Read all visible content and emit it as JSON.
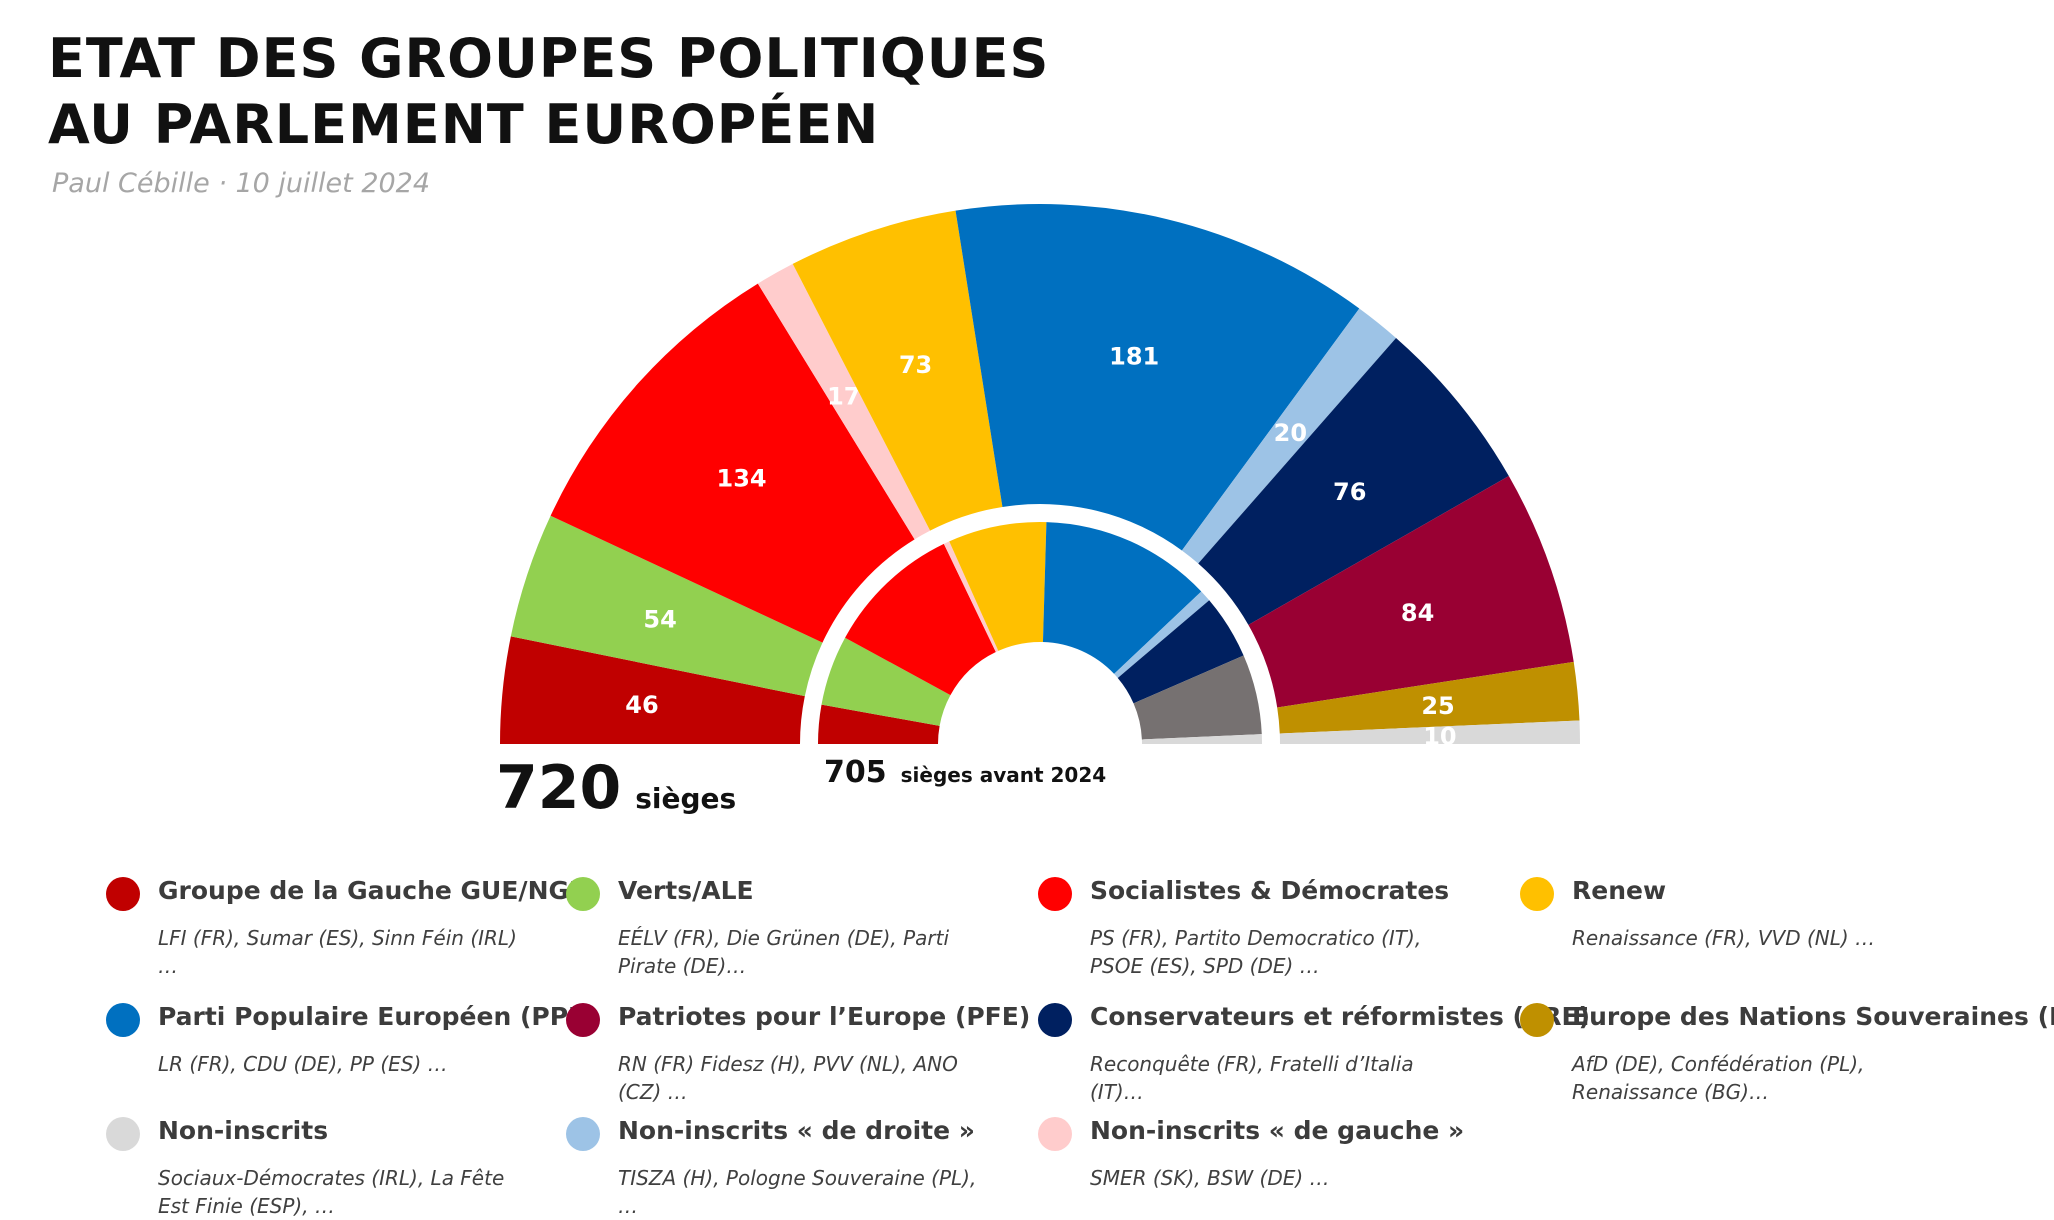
{
  "header": {
    "title_line1": "ETAT DES GROUPES POLITIQUES",
    "title_line2": "AU PARLEMENT EUROPÉEN",
    "subtitle": "Paul Cébille · 10 juillet 2024"
  },
  "chart_data": {
    "type": "pie",
    "variant": "hemicycle",
    "outer_ring": {
      "total_value": "720",
      "total_label": "sièges",
      "slices": [
        {
          "group": "Groupe de la Gauche GUE/NGL",
          "value": 46,
          "color": "#c00000"
        },
        {
          "group": "Verts/ALE",
          "value": 54,
          "color": "#92d050"
        },
        {
          "group": "Socialistes & Démocrates",
          "value": 134,
          "color": "#ff0000"
        },
        {
          "group": "Non-inscrits « de gauche »",
          "value": 17,
          "color": "#ffcccc"
        },
        {
          "group": "Renew",
          "value": 73,
          "color": "#ffc000"
        },
        {
          "group": "Parti Populaire Européen (PPE)",
          "value": 181,
          "color": "#0070c0"
        },
        {
          "group": "Non-inscrits « de droite »",
          "value": 20,
          "color": "#9dc3e6"
        },
        {
          "group": "Conservateurs et réformistes (CRE)",
          "value": 76,
          "color": "#002060"
        },
        {
          "group": "Patriotes pour l'Europe (PFE)",
          "value": 84,
          "color": "#990033"
        },
        {
          "group": "Europe des Nations Souveraines (ENS)",
          "value": 25,
          "color": "#bf9000"
        },
        {
          "group": "Non-inscrits",
          "value": 10,
          "color": "#d9d9d9"
        }
      ]
    },
    "inner_ring": {
      "total_value": "705",
      "total_label": "sièges avant 2024",
      "slices": [
        {
          "value": 40,
          "color": "#c00000"
        },
        {
          "value": 72,
          "color": "#92d050"
        },
        {
          "value": 140,
          "color": "#ff0000"
        },
        {
          "value": 6,
          "color": "#ffcccc"
        },
        {
          "value": 101,
          "color": "#ffc000"
        },
        {
          "value": 176,
          "color": "#0070c0"
        },
        {
          "value": 12,
          "color": "#9dc3e6"
        },
        {
          "value": 66,
          "color": "#002060"
        },
        {
          "value": 82,
          "color": "#767171"
        },
        {
          "value": 10,
          "color": "#d9d9d9"
        }
      ]
    }
  },
  "legend": [
    {
      "name": "Groupe de la Gauche GUE/NGL",
      "desc": "LFI (FR), Sumar (ES), Sinn Féin (IRL) …",
      "color": "#c00000"
    },
    {
      "name": "Verts/ALE",
      "desc": "EÉLV (FR), Die Grünen (DE), Parti Pirate (DE)…",
      "color": "#92d050"
    },
    {
      "name": "Socialistes & Démocrates",
      "desc": "PS (FR), Partito Democratico (IT), PSOE (ES), SPD (DE) …",
      "color": "#ff0000"
    },
    {
      "name": "Renew",
      "desc": "Renaissance (FR), VVD (NL) …",
      "color": "#ffc000"
    },
    {
      "name": "Parti Populaire Européen (PPE)",
      "desc": "LR (FR), CDU (DE), PP (ES) …",
      "color": "#0070c0"
    },
    {
      "name": "Patriotes pour l’Europe (PFE)",
      "desc": "RN (FR) Fidesz (H), PVV (NL), ANO (CZ) …",
      "color": "#990033"
    },
    {
      "name": "Conservateurs et réformistes (CRE)",
      "desc": "Reconquête (FR), Fratelli d’Italia (IT)…",
      "color": "#002060"
    },
    {
      "name": "Europe des Nations Souveraines (ENS)",
      "desc": "AfD (DE), Confédération (PL), Renaissance (BG)…",
      "color": "#bf9000"
    },
    {
      "name": "Non-inscrits",
      "desc": "Sociaux-Démocrates (IRL), La Fête Est Finie (ESP), …",
      "color": "#d9d9d9"
    },
    {
      "name": "Non-inscrits « de droite »",
      "desc": "TISZA (H), Pologne Souveraine (PL), …",
      "color": "#9dc3e6"
    },
    {
      "name": "Non-inscrits « de gauche »",
      "desc": "SMER (SK), BSW (DE) …",
      "color": "#ffcccc"
    }
  ]
}
